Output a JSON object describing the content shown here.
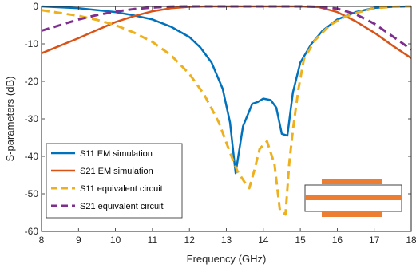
{
  "chart_data": {
    "type": "line",
    "xlabel": "Frequency (GHz)",
    "ylabel": "S-parameters (dB)",
    "xlim": [
      8,
      18
    ],
    "ylim": [
      -60,
      0
    ],
    "xticks": [
      "8",
      "9",
      "10",
      "11",
      "12",
      "13",
      "14",
      "15",
      "16",
      "17",
      "18"
    ],
    "yticks": [
      "0",
      "-10",
      "-20",
      "-30",
      "-40",
      "-50",
      "-60"
    ],
    "grid": false,
    "legend_position": "bottom-left",
    "series": [
      {
        "name": "S11 EM simulation",
        "color": "#0072BD",
        "dash": "solid",
        "x": [
          8,
          9,
          10,
          10.5,
          11,
          11.5,
          12,
          12.3,
          12.6,
          12.9,
          13.1,
          13.25,
          13.45,
          13.7,
          13.85,
          14.0,
          14.2,
          14.35,
          14.5,
          14.65,
          14.8,
          15.0,
          15.3,
          15.6,
          16.0,
          16.5,
          17.0,
          17.5,
          18
        ],
        "y": [
          0,
          -0.5,
          -1.5,
          -2.4,
          -3.5,
          -5.4,
          -8.2,
          -11,
          -15,
          -22,
          -31,
          -44.5,
          -32,
          -26,
          -25.5,
          -24.6,
          -25,
          -27,
          -34,
          -34.5,
          -23,
          -15,
          -10,
          -6.5,
          -3.5,
          -1.5,
          -0.4,
          -0.1,
          0
        ]
      },
      {
        "name": "S21 EM simulation",
        "color": "#D95319",
        "dash": "solid",
        "x": [
          8,
          8.5,
          9,
          9.5,
          10,
          10.5,
          11,
          11.5,
          12,
          12.5,
          13,
          14,
          15,
          15.5,
          16,
          16.5,
          17,
          17.5,
          18
        ],
        "y": [
          -12.5,
          -10.5,
          -8.5,
          -6.3,
          -4.2,
          -2.6,
          -1.3,
          -0.5,
          -0.1,
          0,
          0,
          0,
          0,
          -0.2,
          -1.5,
          -4.0,
          -7.0,
          -10.5,
          -13.8
        ]
      },
      {
        "name": "S11 equivalent circuit",
        "color": "#EDB120",
        "dash": "dashed",
        "x": [
          8,
          9,
          9.5,
          10,
          10.5,
          11,
          11.5,
          12,
          12.4,
          12.8,
          13.1,
          13.3,
          13.5,
          13.62,
          13.75,
          13.9,
          14.1,
          14.3,
          14.45,
          14.6,
          14.7,
          14.8,
          14.95,
          15.1,
          15.4,
          15.8,
          16.2,
          16.6,
          17,
          17.5,
          18
        ],
        "y": [
          -1.0,
          -2.5,
          -3.6,
          -5.0,
          -7.0,
          -9.5,
          -13,
          -18,
          -23.5,
          -31,
          -39,
          -44,
          -47,
          -48.5,
          -44,
          -38,
          -36,
          -42,
          -54.5,
          -55.5,
          -42,
          -33,
          -22,
          -14,
          -9,
          -5,
          -2.8,
          -1.5,
          -0.5,
          -0.1,
          0
        ]
      },
      {
        "name": "S21 equivalent circuit",
        "color": "#7E2F8E",
        "dash": "dashed",
        "x": [
          8,
          8.5,
          9,
          9.5,
          10,
          10.5,
          11,
          11.5,
          12,
          12.5,
          13,
          14,
          15,
          15.5,
          16,
          16.5,
          17,
          17.5,
          18
        ],
        "y": [
          -6.5,
          -5.0,
          -3.5,
          -2.3,
          -1.4,
          -0.7,
          -0.3,
          -0.05,
          0,
          0,
          0,
          0,
          0,
          -0.1,
          -0.6,
          -2.1,
          -4.6,
          -8.0,
          -11.5
        ]
      }
    ]
  }
}
